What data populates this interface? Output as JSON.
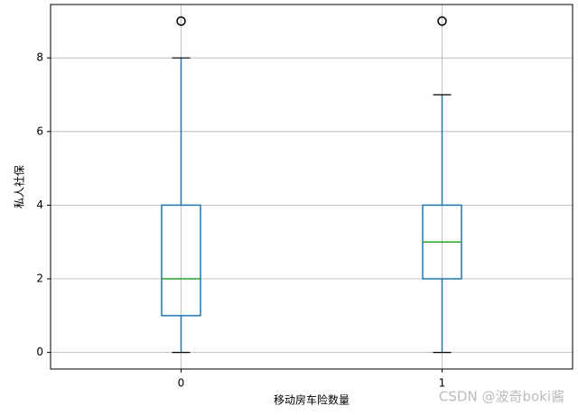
{
  "chart_data": {
    "type": "box",
    "x_label": "移动房车险数量",
    "y_label": "私人社保",
    "categories": [
      "0",
      "1"
    ],
    "boxes": [
      {
        "whislo": 0,
        "q1": 1,
        "med": 2,
        "q3": 4,
        "whishi": 8,
        "fliers": [
          9
        ]
      },
      {
        "whislo": 0,
        "q1": 2,
        "med": 3,
        "q3": 4,
        "whishi": 7,
        "fliers": [
          9
        ]
      }
    ],
    "box_color": "#1f77b4",
    "median_color": "#2ca02c",
    "cap_color": "#000000",
    "flier_color": "#000000",
    "ylim": [
      -0.45,
      9.45
    ],
    "yticks": [
      0,
      2,
      4,
      6,
      8
    ],
    "grid": true,
    "watermark": "CSDN @波奇boki酱"
  }
}
